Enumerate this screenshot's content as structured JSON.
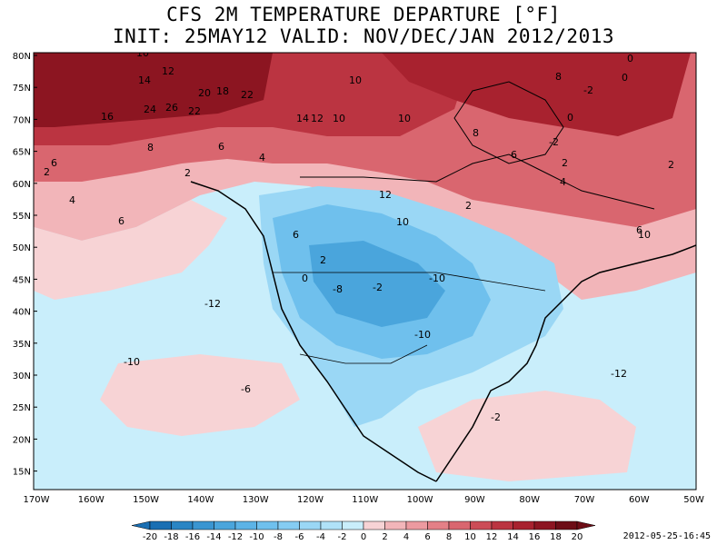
{
  "title_line1": "CFS 2M TEMPERATURE DEPARTURE [°F]",
  "title_line2": "INIT: 25MAY12 VALID: NOV/DEC/JAN 2012/2013",
  "lat_labels": [
    "80N",
    "75N",
    "70N",
    "65N",
    "60N",
    "55N",
    "50N",
    "45N",
    "40N",
    "35N",
    "30N",
    "25N",
    "20N",
    "15N"
  ],
  "lon_labels": [
    "170W",
    "160W",
    "150W",
    "140W",
    "130W",
    "120W",
    "110W",
    "100W",
    "90W",
    "80W",
    "70W",
    "60W",
    "50W"
  ],
  "colorbar": {
    "labels": [
      "-20",
      "-18",
      "-16",
      "-14",
      "-12",
      "-10",
      "-8",
      "-6",
      "-4",
      "-2",
      "0",
      "2",
      "4",
      "6",
      "8",
      "10",
      "12",
      "14",
      "16",
      "18",
      "20"
    ],
    "colors": [
      "#1a6fb3",
      "#2a85c4",
      "#3a95d1",
      "#4aa5dc",
      "#5cb3e6",
      "#6fc0ed",
      "#85ccf2",
      "#9ad7f5",
      "#b0e2f8",
      "#c9eefb",
      "#f7d3d5",
      "#f2b5b9",
      "#ec9aa0",
      "#e48087",
      "#d9666f",
      "#cc4c57",
      "#bb3441",
      "#a8222f",
      "#8c1521",
      "#6d0d16"
    ]
  },
  "contour_labels": [
    "10",
    "12",
    "14",
    "20",
    "18",
    "22",
    "24",
    "26",
    "22",
    "16",
    "14",
    "12",
    "10",
    "8",
    "6",
    "4",
    "2",
    "10",
    "10",
    "8",
    "6",
    "4",
    "2",
    "12",
    "10",
    "6",
    "2",
    "0",
    "-2",
    "-8",
    "-10",
    "-10",
    "-12",
    "-10",
    "-6",
    "-2",
    "-12",
    "0",
    "-2",
    "0",
    "-2",
    "0",
    "2",
    "10",
    "6",
    "8",
    "6",
    "2",
    "4",
    "6",
    "2"
  ],
  "timestamp": "2012-05-25-16:45"
}
